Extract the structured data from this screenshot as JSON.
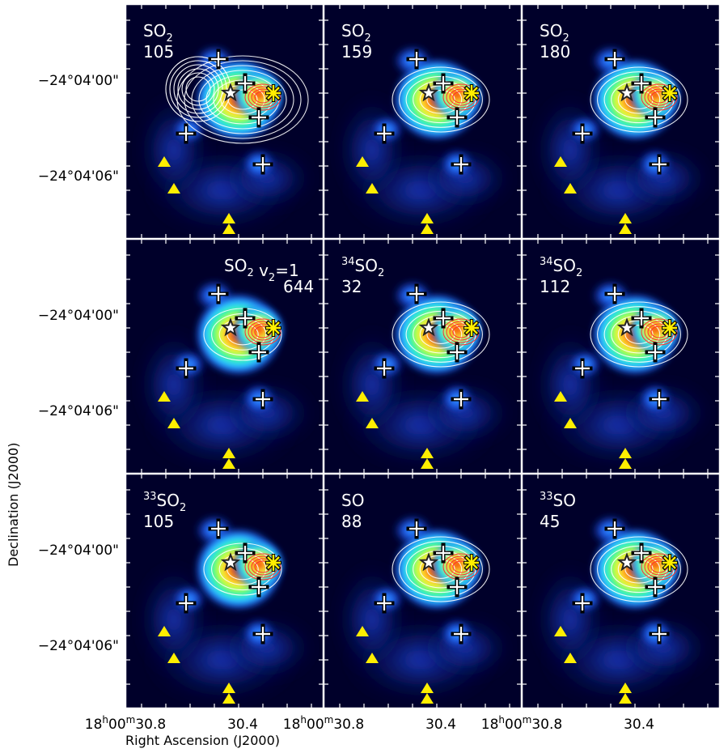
{
  "figure": {
    "xlabel": "Right Ascension (J2000)",
    "ylabel": "Declination (J2000)"
  },
  "chart_data": {
    "type": "heatmap",
    "layout": "3x3 panel grid",
    "ra_ticks": [
      {
        "h": "18",
        "m": "00",
        "s": "30.8",
        "style": "full"
      },
      {
        "h": "",
        "m": "",
        "s": "30.4",
        "style": "sec"
      },
      {
        "h": "18",
        "m": "00",
        "s": "30.8",
        "style": "full"
      },
      {
        "h": "",
        "m": "",
        "s": "30.4",
        "style": "sec"
      },
      {
        "h": "18",
        "m": "00",
        "s": "30.8",
        "style": "full"
      },
      {
        "h": "",
        "m": "",
        "s": "30.4",
        "style": "sec"
      }
    ],
    "dec_ticks": [
      {
        "row": 0,
        "label": "−24°04'00\"",
        "slot": 0
      },
      {
        "row": 0,
        "label": "−24°04'06\"",
        "slot": 1
      },
      {
        "row": 1,
        "label": "−24°04'00\"",
        "slot": 0
      },
      {
        "row": 1,
        "label": "−24°04'06\"",
        "slot": 1
      },
      {
        "row": 2,
        "label": "−24°04'00\"",
        "slot": 0
      },
      {
        "row": 2,
        "label": "−24°04'06\"",
        "slot": 1
      }
    ],
    "panels": [
      {
        "species": "SO",
        "iso": "",
        "sub": "2",
        "suffix": "",
        "value": "105",
        "contour": "big"
      },
      {
        "species": "SO",
        "iso": "",
        "sub": "2",
        "suffix": "",
        "value": "159",
        "contour": "mid"
      },
      {
        "species": "SO",
        "iso": "",
        "sub": "2",
        "suffix": "",
        "value": "180",
        "contour": "mid"
      },
      {
        "species": "SO",
        "iso": "",
        "sub": "2",
        "suffix": " v",
        "suffix_sub": "2",
        "suffix_tail": "=1",
        "value": "644",
        "contour": "small",
        "label_right": true
      },
      {
        "species": "SO",
        "iso": "34",
        "sub": "2",
        "suffix": "",
        "value": "32",
        "contour": "mid"
      },
      {
        "species": "SO",
        "iso": "34",
        "sub": "2",
        "suffix": "",
        "value": "112",
        "contour": "mid"
      },
      {
        "species": "SO",
        "iso": "33",
        "sub": "2",
        "suffix": "",
        "value": "105",
        "contour": "small"
      },
      {
        "species": "SO",
        "iso": "",
        "sub": "",
        "suffix": "",
        "value": "88",
        "contour": "mid"
      },
      {
        "species": "SO",
        "iso": "33",
        "sub": "",
        "suffix": "",
        "value": "45",
        "contour": "mid"
      }
    ],
    "markers": {
      "star_color": "#222222",
      "asterisk_color": "#ffee00",
      "cross_color": "#ffffff",
      "triangle_color": "#ffee00"
    },
    "colormap": [
      "#00002a",
      "#0a1f8c",
      "#1f6cff",
      "#33e0ff",
      "#33ff66",
      "#ffff33",
      "#ff8a1a",
      "#e60000"
    ]
  }
}
